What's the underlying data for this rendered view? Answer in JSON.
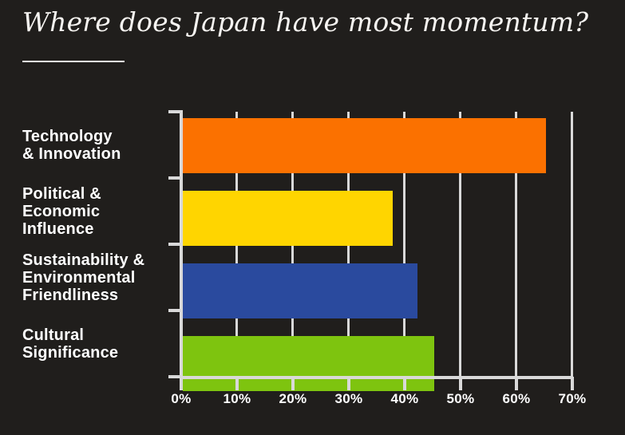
{
  "page": {
    "background_color": "#201E1C",
    "title": "Where does Japan have most momentum?"
  },
  "chart_data": {
    "type": "bar",
    "orientation": "horizontal",
    "title": "Where does Japan have most momentum?",
    "categories": [
      "Technology & Innovation",
      "Political & Economic Influence",
      "Sustainability & Environmental Friendliness",
      "Cultural Significance"
    ],
    "categories_display": [
      "Technology\n& Innovation",
      "Political &\nEconomic\nInfluence",
      "Sustainability &\nEnvironmental\nFriendliness",
      "Cultural\nSignificance"
    ],
    "values": [
      65,
      37.5,
      42,
      45
    ],
    "unit": "%",
    "bar_colors": [
      "#FB7100",
      "#FFD500",
      "#2A4A9E",
      "#7EC40F"
    ],
    "xlabel": "",
    "ylabel": "",
    "xlim": [
      0,
      70
    ],
    "x_ticks": [
      "0%",
      "10%",
      "20%",
      "30%",
      "40%",
      "50%",
      "60%",
      "70%"
    ],
    "grid": true,
    "legend_position": "none",
    "axis_color": "#D9D9D9",
    "text_color": "#FFFFFF",
    "background_color": "#201E1C"
  }
}
